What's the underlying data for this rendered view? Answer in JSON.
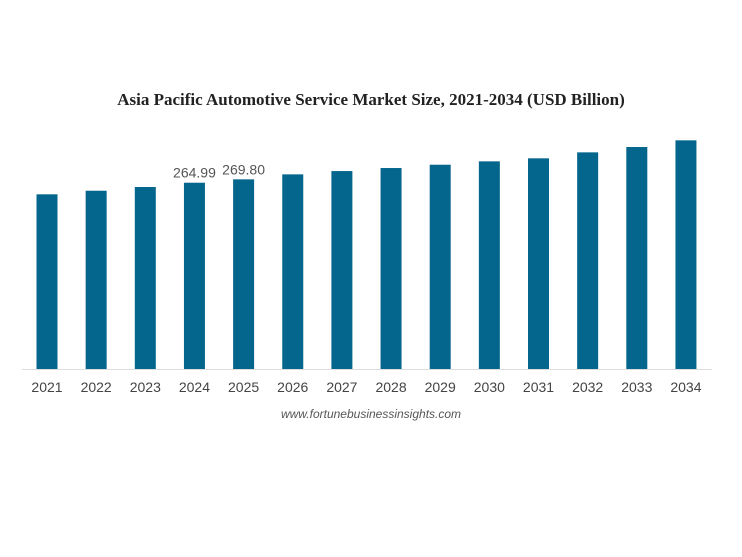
{
  "chart_data": {
    "type": "bar",
    "title": "Asia Pacific Automotive Service Market Size, 2021-2034 (USD Billion)",
    "xlabel": "",
    "ylabel": "",
    "categories": [
      "2021",
      "2022",
      "2023",
      "2024",
      "2025",
      "2026",
      "2027",
      "2028",
      "2029",
      "2030",
      "2031",
      "2032",
      "2033",
      "2034"
    ],
    "values": [
      248.5,
      253.6,
      258.9,
      264.99,
      269.8,
      276.9,
      281.6,
      285.9,
      290.6,
      295.4,
      299.7,
      308.2,
      315.8,
      325.3
    ],
    "data_labels": {
      "3": "264.99",
      "4": "269.80"
    },
    "ylim": [
      0,
      340
    ],
    "grid": false,
    "bar_color": "#05668d",
    "source": "www.fortunebusinessinsights.com"
  }
}
